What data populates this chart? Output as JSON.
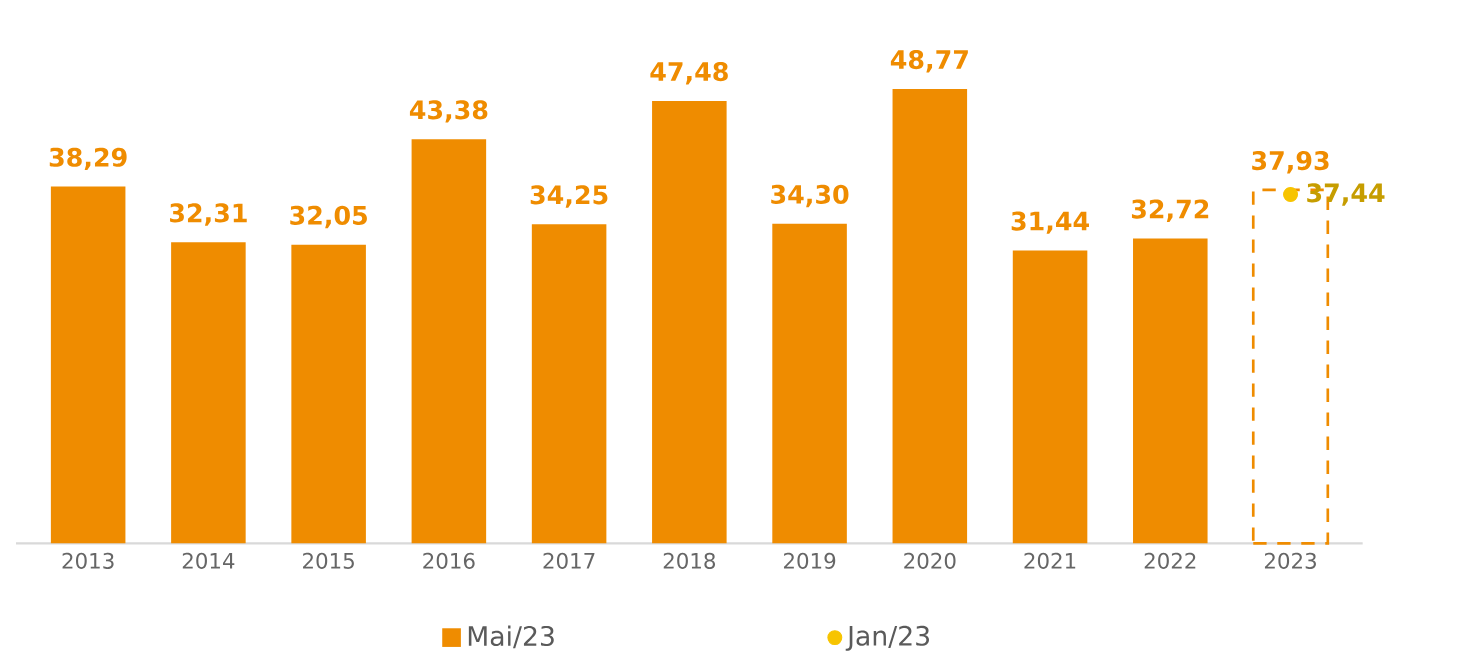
{
  "chart_data": {
    "type": "bar",
    "categories": [
      "2013",
      "2014",
      "2015",
      "2016",
      "2017",
      "2018",
      "2019",
      "2020",
      "2021",
      "2022",
      "2023"
    ],
    "series": [
      {
        "name": "Mai/23",
        "color": "#ef8c00",
        "values": [
          38.29,
          32.31,
          32.05,
          43.38,
          34.25,
          47.48,
          34.3,
          48.77,
          31.44,
          32.72,
          null
        ],
        "value_labels": [
          "38,29",
          "32,31",
          "32,05",
          "43,38",
          "34,25",
          "47,48",
          "34,30",
          "48,77",
          "31,44",
          "32,72",
          null
        ]
      },
      {
        "color": "#ef8c00",
        "line_style": "dashed",
        "values": [
          null,
          null,
          null,
          null,
          null,
          null,
          null,
          null,
          null,
          null,
          37.93
        ],
        "value_labels": [
          null,
          null,
          null,
          null,
          null,
          null,
          null,
          null,
          null,
          null,
          "37,93"
        ]
      },
      {
        "name": "Jan/23",
        "type": "scatter",
        "marker": "circle",
        "color": "#f7c400",
        "values": [
          null,
          null,
          null,
          null,
          null,
          null,
          null,
          null,
          null,
          null,
          37.44
        ],
        "value_labels": [
          null,
          null,
          null,
          null,
          null,
          null,
          null,
          null,
          null,
          null,
          "37,44"
        ]
      }
    ],
    "legend": "bottom",
    "grid": false
  }
}
